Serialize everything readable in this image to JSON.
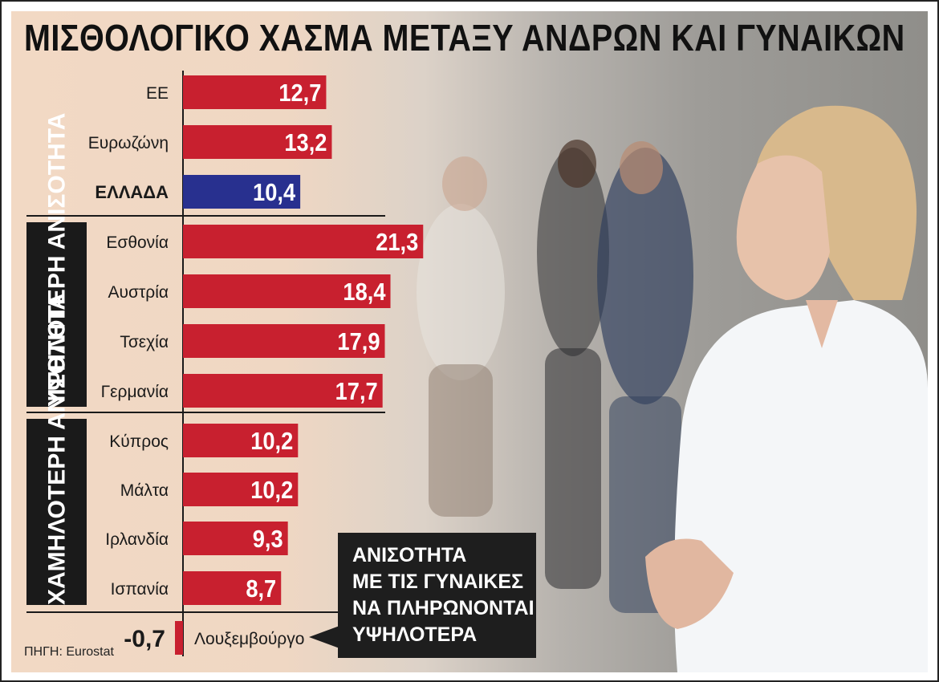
{
  "title": "ΜΙΣΘΟΛΟΓΙΚΟ ΧΑΣΜΑ ΜΕΤΑΞΥ ΑΝΔΡΩΝ ΚΑΙ ΓΥΝΑΙΚΩΝ",
  "source": "ΠΗΓΗ: Eurostat",
  "groups": {
    "higher": "ΥΨΗΛΟΤΕΡΗ ΑΝΙΣΟΤΗΤΑ",
    "lower": "ΧΑΜΗΛΟΤΕΡΗ ΑΝΙΣΟΤΗΤΑ"
  },
  "callout": "ΑΝΙΣΟΤΗΤΑ\nΜΕ ΤΙΣ ΓΥΝΑΙΚΕΣ\nΝΑ ΠΛΗΡΩΝΟΝΤΑΙ\nΥΨΗΛΟΤΕΡΑ",
  "colors": {
    "bar": "#c8202f",
    "highlight": "#28308f",
    "label": "#1a1a1a",
    "bar_text": "#ffffff"
  },
  "chart_data": {
    "type": "bar",
    "orientation": "horizontal",
    "categories": [
      "ΕΕ",
      "Ευρωζώνη",
      "ΕΛΛΑΔΑ",
      "Εσθονία",
      "Αυστρία",
      "Τσεχία",
      "Γερμανία",
      "Κύπρος",
      "Μάλτα",
      "Ιρλανδία",
      "Ισπανία",
      "Λουξεμβούργο"
    ],
    "values": [
      12.7,
      13.2,
      10.4,
      21.3,
      18.4,
      17.9,
      17.7,
      10.2,
      10.2,
      9.3,
      8.7,
      -0.7
    ],
    "value_labels": [
      "12,7",
      "13,2",
      "10,4",
      "21,3",
      "18,4",
      "17,9",
      "17,7",
      "10,2",
      "10,2",
      "9,3",
      "8,7",
      "-0,7"
    ],
    "highlight": [
      "ΕΛΛΑΔΑ"
    ],
    "bold": [
      "ΕΛΛΑΔΑ"
    ],
    "title": "ΜΙΣΘΟΛΟΓΙΚΟ ΧΑΣΜΑ ΜΕΤΑΞΥ ΑΝΔΡΩΝ ΚΑΙ ΓΥΝΑΙΚΩΝ",
    "xlabel": "",
    "ylabel": "",
    "grid": false,
    "legend": "none"
  }
}
